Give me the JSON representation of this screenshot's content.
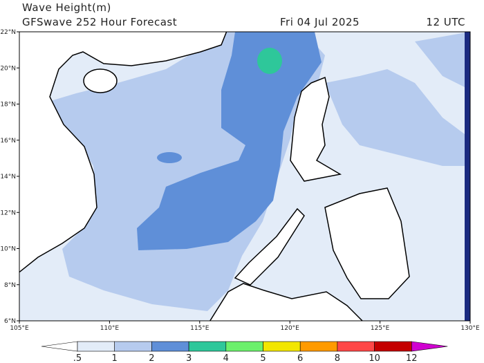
{
  "header": {
    "title": "Wave Height(m)",
    "subtitle": "GFSwave 252 Hour Forecast",
    "date": "Fri 04 Jul 2025",
    "time": "12 UTC"
  },
  "map": {
    "lat_labels": [
      "6°N",
      "8°N",
      "10°N",
      "12°N",
      "14°N",
      "16°N",
      "18°N",
      "20°N",
      "22°N"
    ],
    "lon_labels": [
      "105°E",
      "110°E",
      "115°E",
      "120°E",
      "125°E",
      "130°E"
    ]
  },
  "colorbar": {
    "labels": [
      ".5",
      "1",
      "2",
      "3",
      "4",
      "5",
      "6",
      "8",
      "10",
      "12"
    ],
    "colors": [
      "#ffffff",
      "#e3ecf8",
      "#b6cbee",
      "#5f8fd8",
      "#2ec79a",
      "#6cf06c",
      "#f2e600",
      "#ff9a00",
      "#ff4848",
      "#c40000",
      "#d000d0"
    ]
  }
}
